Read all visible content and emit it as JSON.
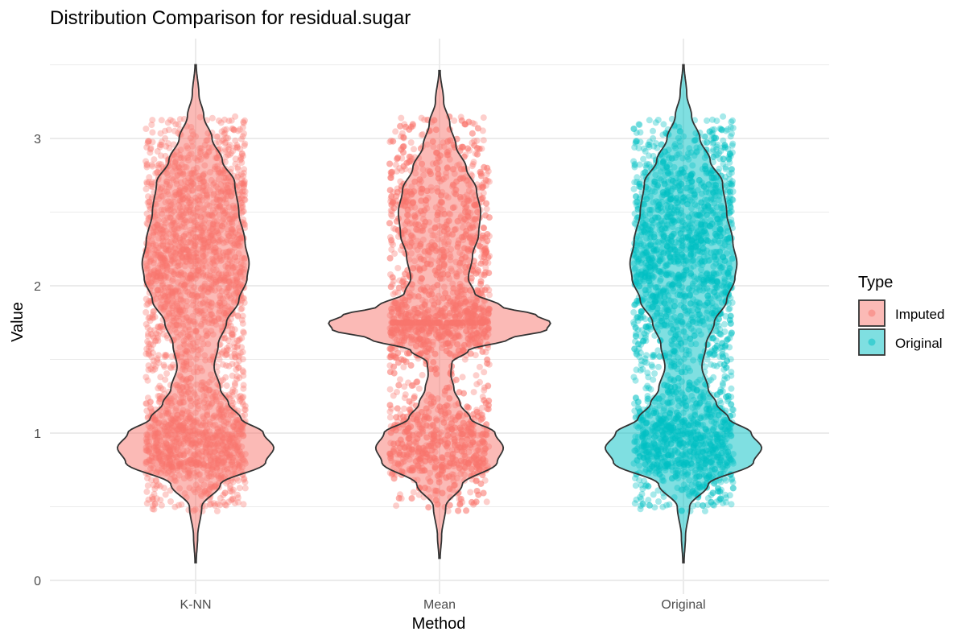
{
  "chart_data": {
    "type": "violin",
    "title": "Distribution Comparison for residual.sugar",
    "xlabel": "Method",
    "ylabel": "Value",
    "categories": [
      "K-NN",
      "Mean",
      "Original"
    ],
    "ylim": [
      0,
      3.5
    ],
    "yticks": [
      0,
      1,
      2,
      3
    ],
    "grid": true,
    "legend": {
      "title": "Type",
      "position": "right",
      "entries": [
        {
          "label": "Imputed",
          "color": "#F8766D"
        },
        {
          "label": "Original",
          "color": "#00BFC4"
        }
      ]
    },
    "series": [
      {
        "category": "K-NN",
        "type": "Imputed",
        "color": "#F8766D",
        "range": [
          0.12,
          3.5
        ],
        "points_range": [
          0.47,
          3.15
        ],
        "density_profile": [
          [
            0.12,
            0.3
          ],
          [
            0.3,
            1.0
          ],
          [
            0.5,
            3.0
          ],
          [
            0.65,
            12
          ],
          [
            0.8,
            34
          ],
          [
            0.9,
            38
          ],
          [
            1.0,
            33
          ],
          [
            1.1,
            22
          ],
          [
            1.2,
            16
          ],
          [
            1.3,
            12
          ],
          [
            1.45,
            9
          ],
          [
            1.6,
            11
          ],
          [
            1.75,
            15
          ],
          [
            1.9,
            21
          ],
          [
            2.05,
            25
          ],
          [
            2.15,
            26
          ],
          [
            2.3,
            24
          ],
          [
            2.5,
            21
          ],
          [
            2.7,
            19
          ],
          [
            2.85,
            13
          ],
          [
            3.0,
            8
          ],
          [
            3.15,
            4
          ],
          [
            3.3,
            1.6
          ],
          [
            3.5,
            0.3
          ]
        ]
      },
      {
        "category": "Mean",
        "type": "Imputed",
        "color": "#F8766D",
        "range": [
          0.15,
          3.46
        ],
        "points_range": [
          0.47,
          3.15
        ],
        "spike_value": 1.75,
        "density_profile": [
          [
            0.15,
            0.3
          ],
          [
            0.3,
            1.0
          ],
          [
            0.5,
            3.0
          ],
          [
            0.65,
            11
          ],
          [
            0.8,
            28
          ],
          [
            0.9,
            31
          ],
          [
            1.0,
            27
          ],
          [
            1.1,
            15
          ],
          [
            1.2,
            10
          ],
          [
            1.3,
            7
          ],
          [
            1.4,
            5.5
          ],
          [
            1.48,
            6
          ],
          [
            1.56,
            14
          ],
          [
            1.64,
            34
          ],
          [
            1.7,
            52
          ],
          [
            1.75,
            54
          ],
          [
            1.8,
            47
          ],
          [
            1.86,
            30
          ],
          [
            1.95,
            17
          ],
          [
            2.05,
            14
          ],
          [
            2.2,
            16
          ],
          [
            2.35,
            19
          ],
          [
            2.5,
            20
          ],
          [
            2.65,
            18
          ],
          [
            2.8,
            13
          ],
          [
            2.95,
            8
          ],
          [
            3.1,
            5
          ],
          [
            3.25,
            2
          ],
          [
            3.46,
            0.3
          ]
        ]
      },
      {
        "category": "Original",
        "type": "Original",
        "color": "#00BFC4",
        "range": [
          0.12,
          3.5
        ],
        "points_range": [
          0.47,
          3.15
        ],
        "density_profile": [
          [
            0.12,
            0.3
          ],
          [
            0.3,
            1.0
          ],
          [
            0.5,
            3.0
          ],
          [
            0.65,
            12
          ],
          [
            0.8,
            34
          ],
          [
            0.9,
            38
          ],
          [
            1.0,
            33
          ],
          [
            1.1,
            22
          ],
          [
            1.2,
            16
          ],
          [
            1.3,
            12
          ],
          [
            1.45,
            9
          ],
          [
            1.6,
            11
          ],
          [
            1.75,
            15
          ],
          [
            1.9,
            21
          ],
          [
            2.05,
            25
          ],
          [
            2.15,
            26
          ],
          [
            2.3,
            24
          ],
          [
            2.5,
            21
          ],
          [
            2.7,
            19
          ],
          [
            2.85,
            13
          ],
          [
            3.0,
            8
          ],
          [
            3.15,
            4
          ],
          [
            3.3,
            1.6
          ],
          [
            3.5,
            0.3
          ]
        ]
      }
    ]
  }
}
